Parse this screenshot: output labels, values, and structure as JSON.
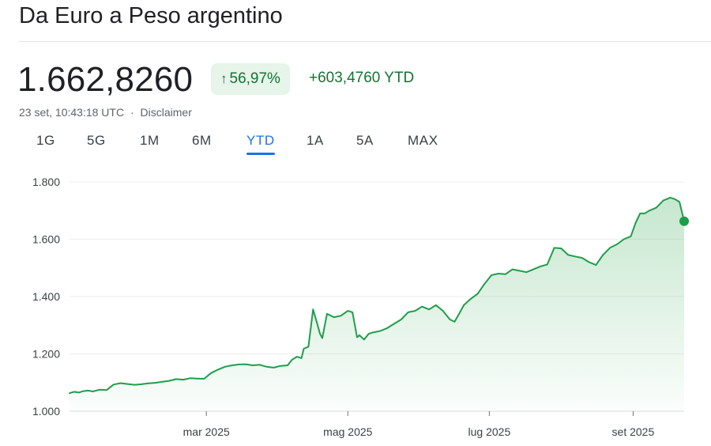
{
  "title": "Da Euro a Peso argentino",
  "price": "1.662,8260",
  "change_pct": "56,97%",
  "change_abs": "+603,4760 YTD",
  "timestamp": "23 set, 10:43:18 UTC",
  "separator": "·",
  "disclaimer": "Disclaimer",
  "tabs": [
    {
      "label": "1G",
      "active": false
    },
    {
      "label": "5G",
      "active": false
    },
    {
      "label": "1M",
      "active": false
    },
    {
      "label": "6M",
      "active": false
    },
    {
      "label": "YTD",
      "active": true
    },
    {
      "label": "1A",
      "active": false
    },
    {
      "label": "5A",
      "active": false
    },
    {
      "label": "MAX",
      "active": false
    }
  ],
  "colors": {
    "up": "#137333",
    "line": "#1e9e4a",
    "accent": "#1a73e8"
  },
  "chart_data": {
    "type": "area",
    "xaxis_type": "date",
    "yticks": [
      "1.000",
      "1.200",
      "1.400",
      "1.600",
      "1.800"
    ],
    "ytick_values": [
      1000,
      1200,
      1400,
      1600,
      1800
    ],
    "ylim": [
      1000,
      1800
    ],
    "xticks": [
      {
        "label": "mar 2025",
        "date": "2025-03-01"
      },
      {
        "label": "mag 2025",
        "date": "2025-05-01"
      },
      {
        "label": "lug 2025",
        "date": "2025-07-01"
      },
      {
        "label": "set 2025",
        "date": "2025-09-01"
      }
    ],
    "xlim": [
      "2025-01-01",
      "2025-09-23"
    ],
    "grid": true,
    "series": [
      {
        "x": [
          "2025-01-01",
          "2025-01-03",
          "2025-01-05",
          "2025-01-07",
          "2025-01-09",
          "2025-01-11",
          "2025-01-14",
          "2025-01-17",
          "2025-01-20",
          "2025-01-23",
          "2025-01-26",
          "2025-01-29",
          "2025-02-01",
          "2025-02-04",
          "2025-02-07",
          "2025-02-10",
          "2025-02-13",
          "2025-02-16",
          "2025-02-19",
          "2025-02-22",
          "2025-02-25",
          "2025-02-28",
          "2025-03-03",
          "2025-03-06",
          "2025-03-09",
          "2025-03-12",
          "2025-03-15",
          "2025-03-18",
          "2025-03-21",
          "2025-03-24",
          "2025-03-27",
          "2025-03-30",
          "2025-04-02",
          "2025-04-05",
          "2025-04-07",
          "2025-04-09",
          "2025-04-11",
          "2025-04-12",
          "2025-04-14",
          "2025-04-16",
          "2025-04-18",
          "2025-04-19",
          "2025-04-20",
          "2025-04-22",
          "2025-04-25",
          "2025-04-28",
          "2025-05-01",
          "2025-05-03",
          "2025-05-05",
          "2025-05-06",
          "2025-05-08",
          "2025-05-10",
          "2025-05-12",
          "2025-05-15",
          "2025-05-18",
          "2025-05-21",
          "2025-05-24",
          "2025-05-27",
          "2025-05-30",
          "2025-06-02",
          "2025-06-05",
          "2025-06-08",
          "2025-06-11",
          "2025-06-14",
          "2025-06-16",
          "2025-06-18",
          "2025-06-20",
          "2025-06-23",
          "2025-06-26",
          "2025-06-29",
          "2025-07-02",
          "2025-07-05",
          "2025-07-08",
          "2025-07-11",
          "2025-07-14",
          "2025-07-17",
          "2025-07-20",
          "2025-07-23",
          "2025-07-26",
          "2025-07-29",
          "2025-08-01",
          "2025-08-04",
          "2025-08-07",
          "2025-08-10",
          "2025-08-13",
          "2025-08-16",
          "2025-08-19",
          "2025-08-22",
          "2025-08-25",
          "2025-08-28",
          "2025-08-31",
          "2025-09-02",
          "2025-09-04",
          "2025-09-06",
          "2025-09-08",
          "2025-09-11",
          "2025-09-14",
          "2025-09-17",
          "2025-09-19",
          "2025-09-21",
          "2025-09-23"
        ],
        "y": [
          1063,
          1068,
          1065,
          1070,
          1072,
          1069,
          1075,
          1074,
          1093,
          1098,
          1095,
          1092,
          1094,
          1097,
          1099,
          1103,
          1106,
          1112,
          1110,
          1115,
          1114,
          1113,
          1133,
          1145,
          1155,
          1160,
          1163,
          1164,
          1160,
          1162,
          1155,
          1152,
          1158,
          1160,
          1180,
          1190,
          1185,
          1218,
          1225,
          1355,
          1300,
          1270,
          1255,
          1340,
          1328,
          1333,
          1350,
          1345,
          1258,
          1265,
          1250,
          1270,
          1275,
          1280,
          1290,
          1305,
          1320,
          1345,
          1350,
          1365,
          1355,
          1370,
          1350,
          1320,
          1312,
          1340,
          1370,
          1392,
          1410,
          1445,
          1475,
          1480,
          1478,
          1495,
          1490,
          1485,
          1495,
          1505,
          1512,
          1570,
          1568,
          1545,
          1540,
          1535,
          1520,
          1510,
          1545,
          1570,
          1582,
          1600,
          1610,
          1655,
          1690,
          1690,
          1700,
          1710,
          1735,
          1745,
          1740,
          1730,
          1663
        ]
      }
    ],
    "last_value": 1662.826
  }
}
